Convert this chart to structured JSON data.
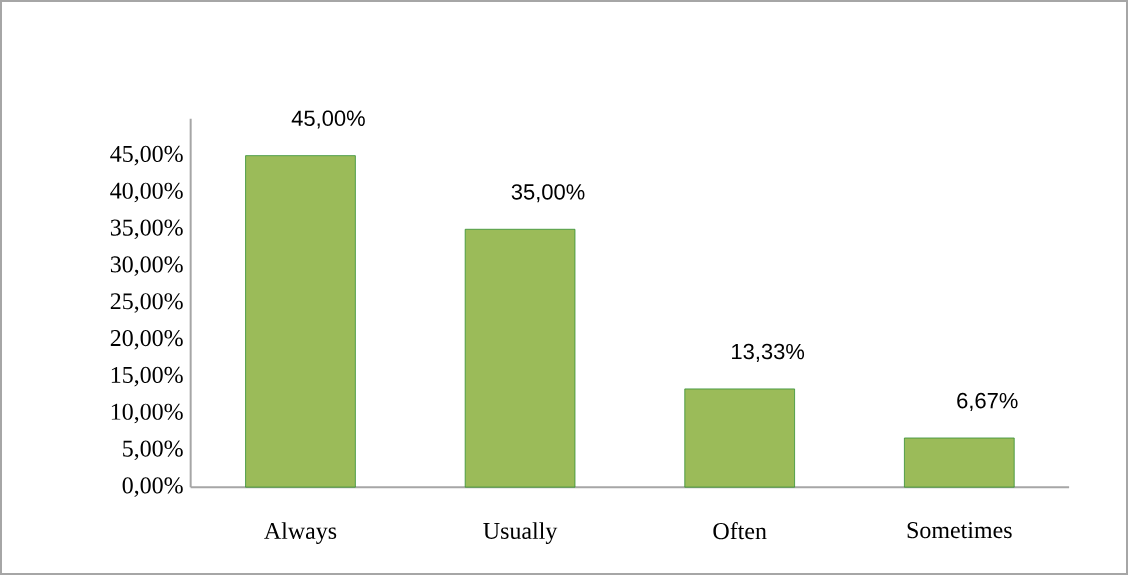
{
  "chart_data": {
    "type": "bar",
    "categories": [
      "Always",
      "Usually",
      "Often",
      "Sometimes"
    ],
    "values": [
      45,
      35,
      13.33,
      6.67
    ],
    "value_labels": [
      "45,00%",
      "35,00%",
      "13,33%",
      "6,67%"
    ],
    "color": "#9bbb59",
    "ylim": [
      0,
      50
    ],
    "yticks": [
      {
        "value": 0,
        "label": "0,00%"
      },
      {
        "value": 5,
        "label": "5,00%"
      },
      {
        "value": 10,
        "label": "10,00%"
      },
      {
        "value": 15,
        "label": "15,00%"
      },
      {
        "value": 20,
        "label": "20,00%"
      },
      {
        "value": 25,
        "label": "25,00%"
      },
      {
        "value": 30,
        "label": "30,00%"
      },
      {
        "value": 35,
        "label": "35,00%"
      },
      {
        "value": 40,
        "label": "40,00%"
      },
      {
        "value": 45,
        "label": "45,00%"
      }
    ],
    "grid": false
  }
}
